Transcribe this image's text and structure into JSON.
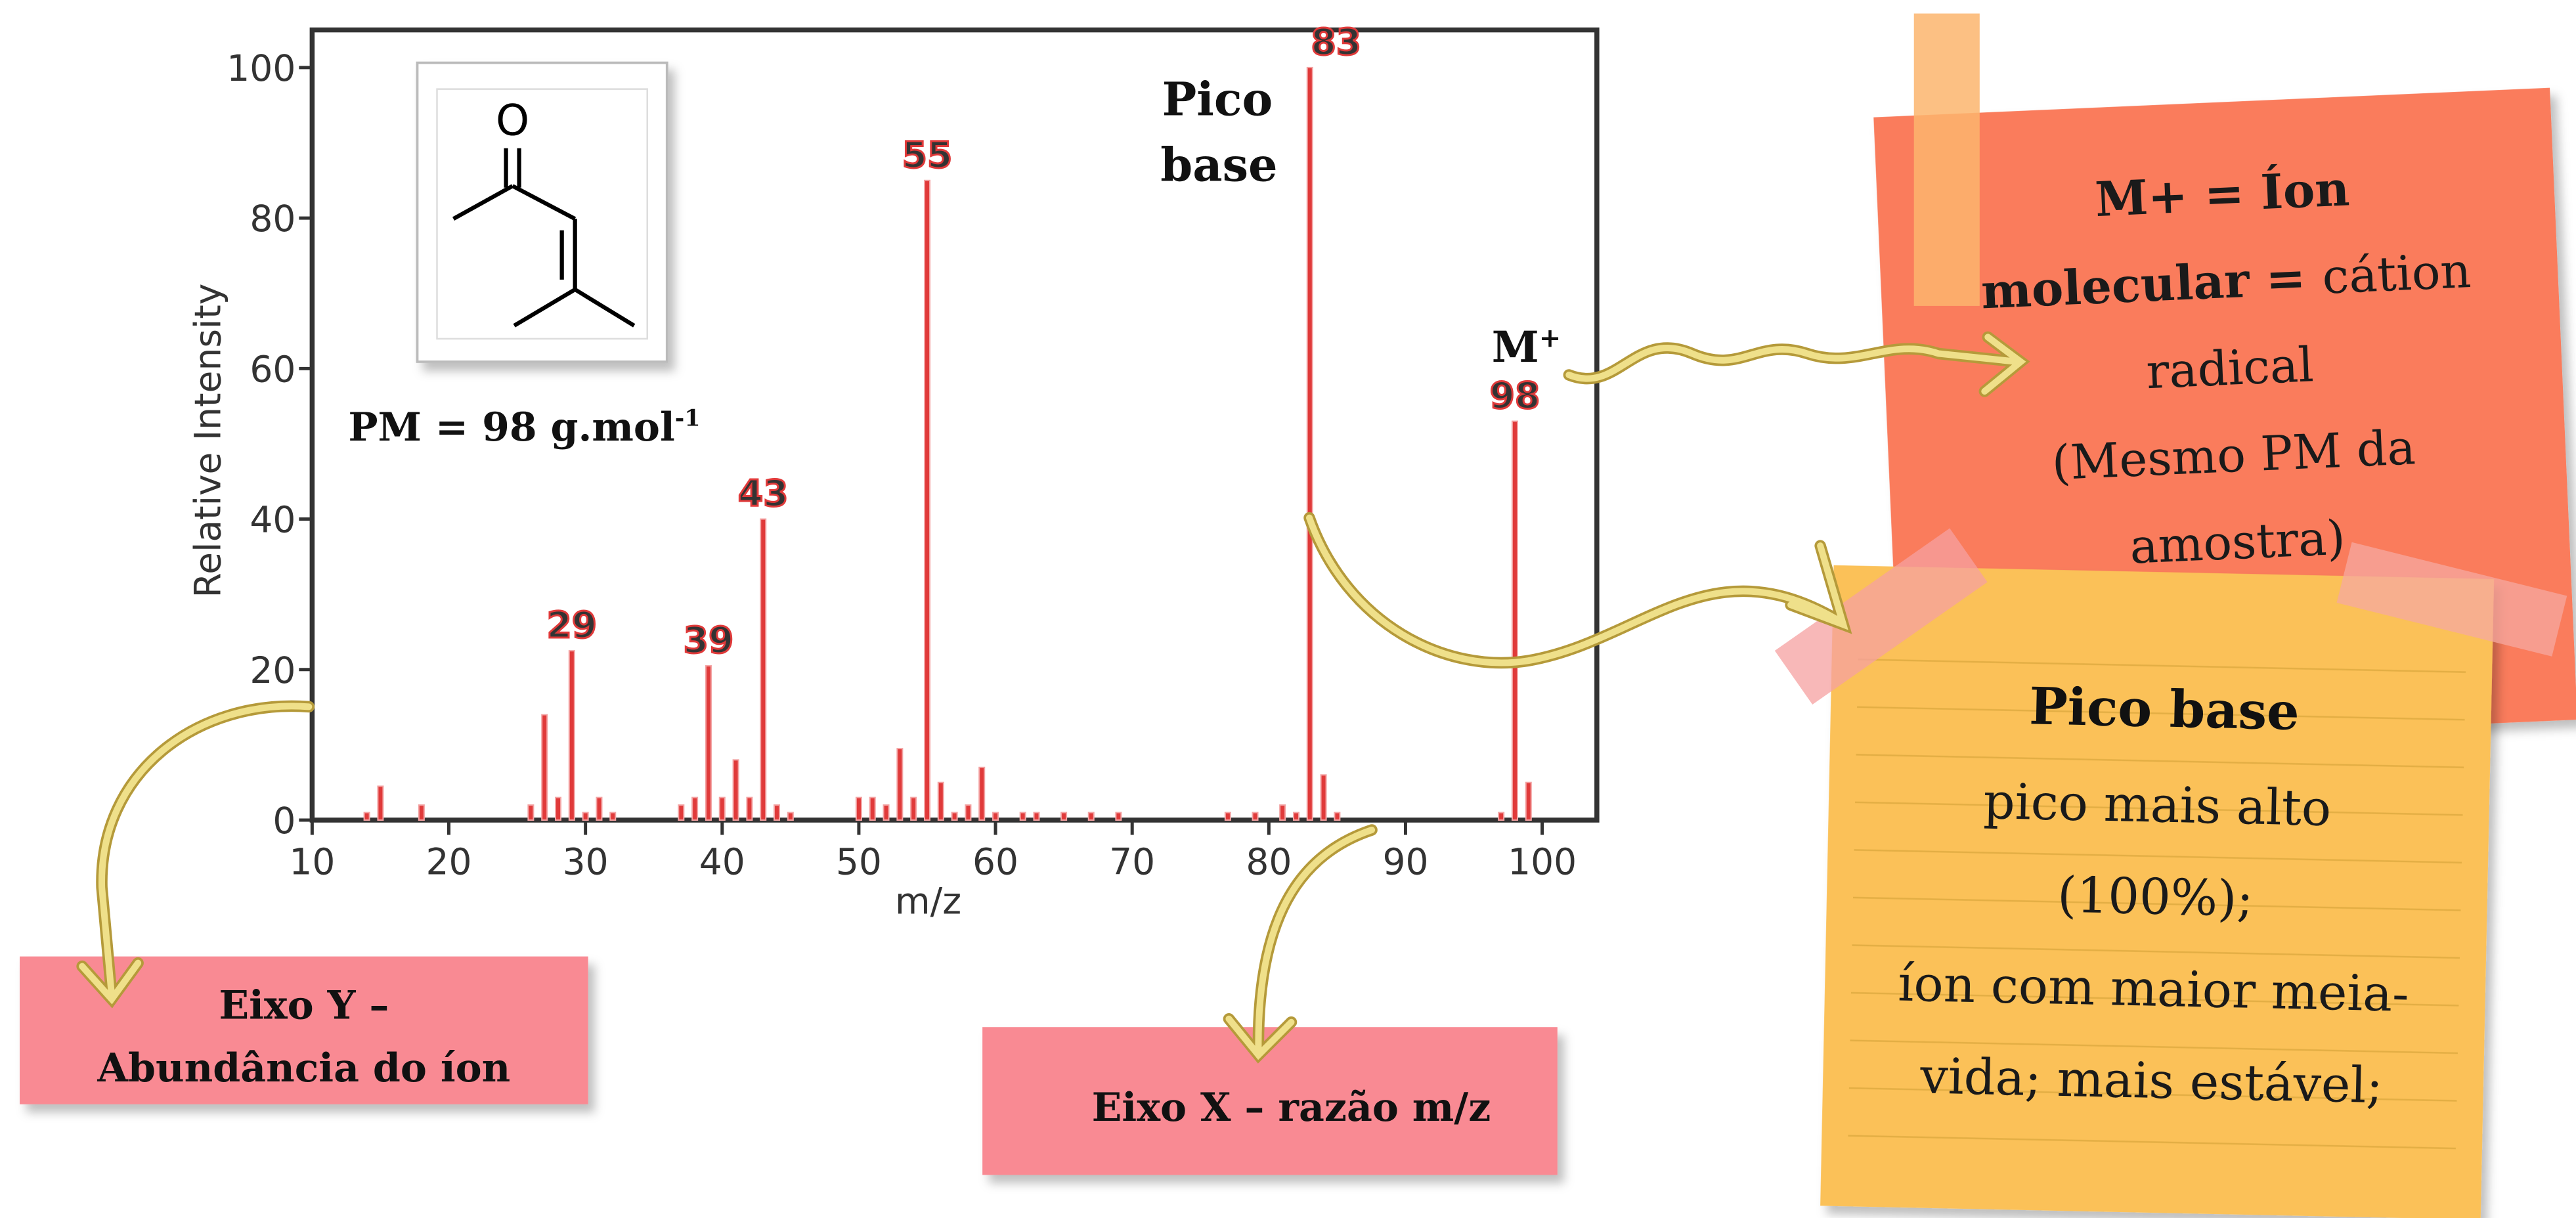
{
  "chart_data": {
    "type": "bar",
    "xlabel": "m/z",
    "ylabel": "Relative Intensity",
    "x": [
      14,
      15,
      18,
      26,
      27,
      28,
      29,
      30,
      31,
      32,
      37,
      38,
      39,
      40,
      41,
      42,
      43,
      44,
      45,
      50,
      51,
      52,
      53,
      54,
      55,
      56,
      57,
      58,
      59,
      60,
      62,
      63,
      65,
      67,
      69,
      77,
      79,
      81,
      82,
      83,
      84,
      85,
      97,
      98,
      99
    ],
    "values": [
      1,
      4.5,
      2,
      2,
      14,
      3,
      22.5,
      1,
      3,
      1,
      2,
      3,
      20.5,
      3,
      8,
      3,
      40,
      2,
      1,
      3,
      3,
      2,
      9.5,
      3,
      85,
      5,
      1,
      2,
      7,
      1,
      1,
      1,
      1,
      1,
      1,
      1,
      1,
      2,
      1,
      100,
      6,
      1,
      1,
      53,
      5
    ],
    "color": "#e03a3a",
    "peak_labels": [
      29,
      39,
      43,
      55,
      83,
      98
    ],
    "xlim": [
      10,
      104
    ],
    "ylim": [
      0,
      105
    ],
    "xticks": [
      10,
      20,
      30,
      40,
      50,
      60,
      70,
      80,
      90,
      100
    ],
    "yticks": [
      0,
      20,
      40,
      60,
      80,
      100
    ],
    "annotations": {
      "base_peak": [
        "Pico",
        "base"
      ],
      "molecular_ion": [
        "M",
        "+"
      ],
      "molar_mass": [
        "PM = 98 g.mol",
        "-1"
      ]
    },
    "structure": {
      "atoms": [
        "O"
      ]
    }
  },
  "notes": {
    "y_axis": [
      "Eixo Y –",
      "Abundância do íon"
    ],
    "x_axis": [
      "Eixo X – razão m/z"
    ],
    "molecular_ion": [
      [
        {
          "text": "M+ = Íon",
          "bold": true
        }
      ],
      [
        {
          "text": "molecular = ",
          "bold": true
        },
        {
          "text": "cátion",
          "bold": false
        }
      ],
      [
        {
          "text": "radical",
          "bold": false
        }
      ],
      [
        {
          "text": "(Mesmo PM da",
          "bold": false
        }
      ],
      [
        {
          "text": "amostra)",
          "bold": false
        }
      ]
    ],
    "base_peak": {
      "title": "Pico base",
      "lines": [
        "pico mais alto",
        "(100%);",
        "íon com maior meia-",
        "vida;  mais estável;"
      ]
    }
  }
}
